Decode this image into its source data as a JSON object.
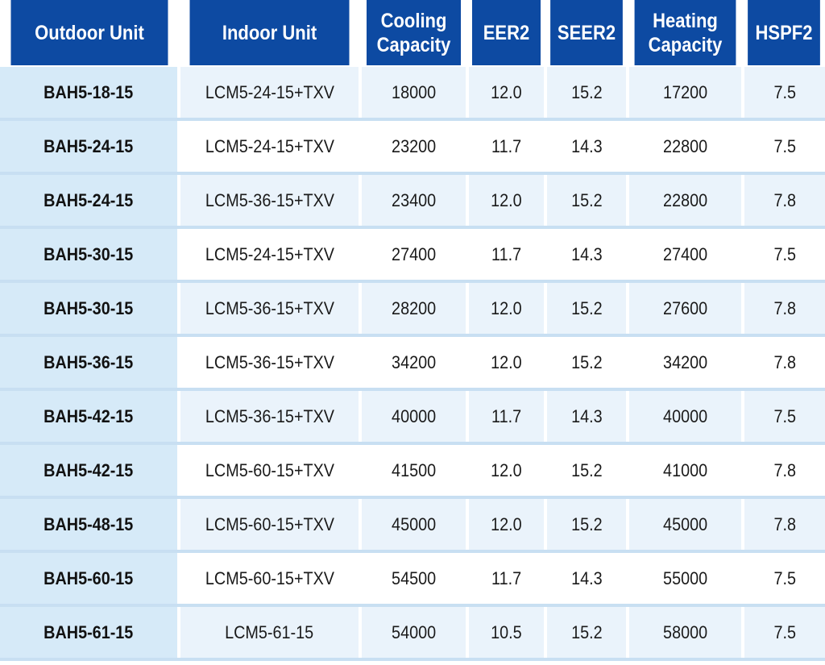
{
  "table": {
    "headers": [
      "Outdoor Unit",
      "Indoor Unit",
      "Cooling\nCapacity",
      "EER2",
      "SEER2",
      "Heating\nCapacity",
      "HSPF2"
    ],
    "rows": [
      [
        "BAH5-18-15",
        "LCM5-24-15+TXV",
        "18000",
        "12.0",
        "15.2",
        "17200",
        "7.5"
      ],
      [
        "BAH5-24-15",
        "LCM5-24-15+TXV",
        "23200",
        "11.7",
        "14.3",
        "22800",
        "7.5"
      ],
      [
        "BAH5-24-15",
        "LCM5-36-15+TXV",
        "23400",
        "12.0",
        "15.2",
        "22800",
        "7.8"
      ],
      [
        "BAH5-30-15",
        "LCM5-24-15+TXV",
        "27400",
        "11.7",
        "14.3",
        "27400",
        "7.5"
      ],
      [
        "BAH5-30-15",
        "LCM5-36-15+TXV",
        "28200",
        "12.0",
        "15.2",
        "27600",
        "7.8"
      ],
      [
        "BAH5-36-15",
        "LCM5-36-15+TXV",
        "34200",
        "12.0",
        "15.2",
        "34200",
        "7.8"
      ],
      [
        "BAH5-42-15",
        "LCM5-36-15+TXV",
        "40000",
        "11.7",
        "14.3",
        "40000",
        "7.5"
      ],
      [
        "BAH5-42-15",
        "LCM5-60-15+TXV",
        "41500",
        "12.0",
        "15.2",
        "41000",
        "7.8"
      ],
      [
        "BAH5-48-15",
        "LCM5-60-15+TXV",
        "45000",
        "12.0",
        "15.2",
        "45000",
        "7.8"
      ],
      [
        "BAH5-60-15",
        "LCM5-60-15+TXV",
        "54500",
        "11.7",
        "14.3",
        "55000",
        "7.5"
      ],
      [
        "BAH5-61-15",
        "LCM5-61-15",
        "54000",
        "10.5",
        "15.2",
        "58000",
        "7.5"
      ]
    ]
  },
  "colors": {
    "header_bg": "#0d4aa2",
    "header_text": "#ffffff",
    "outdoor_col_bg": "#d6eaf8",
    "row_alt_bg": "#eaf3fb",
    "row_divider": "#c8dff2"
  }
}
